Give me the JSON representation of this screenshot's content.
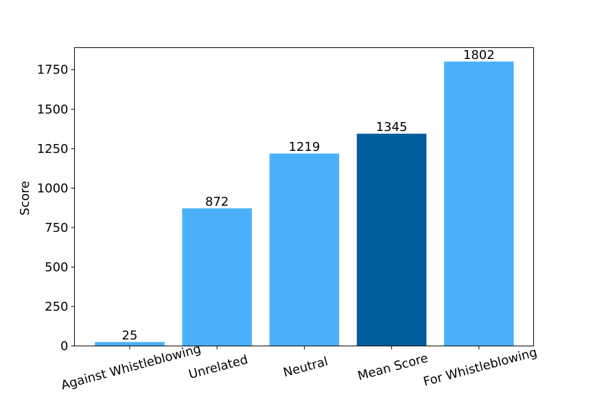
{
  "chart_data": {
    "type": "bar",
    "categories": [
      "Against Whistleblowing",
      "Unrelated",
      "Neutral",
      "Mean Score",
      "For Whistleblowing"
    ],
    "values": [
      25,
      872,
      1219,
      1345,
      1802
    ],
    "data_labels": [
      "25",
      "872",
      "1219",
      "1345",
      "1802"
    ],
    "title": "",
    "xlabel": "",
    "ylabel": "Score",
    "ylim": [
      0,
      1890
    ],
    "yticks": [
      0,
      250,
      500,
      750,
      1000,
      1250,
      1500,
      1750
    ],
    "ytick_labels": [
      "0",
      "250",
      "500",
      "750",
      "1000",
      "1250",
      "1500",
      "1750"
    ],
    "grid": false,
    "legend": "none",
    "colors": [
      "#4ab0fc",
      "#4ab0fc",
      "#4ab0fc",
      "#005e9e",
      "#4ab0fc"
    ]
  }
}
